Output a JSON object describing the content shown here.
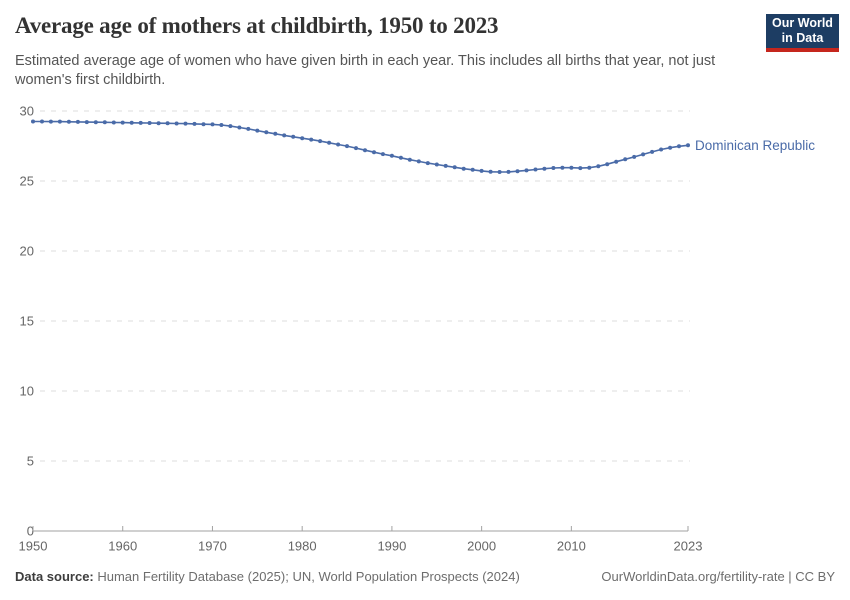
{
  "header": {
    "title": "Average age of mothers at childbirth, 1950 to 2023",
    "subtitle": "Estimated average age of women who have given birth in each year. This includes all births that year, not just women's first childbirth.",
    "logo": {
      "line1": "Our World",
      "line2": "in Data",
      "bg_color": "#1d3d63",
      "bar_color": "#c5261d",
      "text_color": "#ffffff"
    }
  },
  "chart_data": {
    "type": "line",
    "title": "Average age of mothers at childbirth, 1950 to 2023",
    "xlabel": "",
    "ylabel": "",
    "xlim": [
      1950,
      2023
    ],
    "ylim": [
      0,
      30
    ],
    "x_ticks": [
      1950,
      1960,
      1970,
      1980,
      1990,
      2000,
      2010,
      2023
    ],
    "y_ticks": [
      0,
      5,
      10,
      15,
      20,
      25,
      30
    ],
    "grid": "horizontal-dashed",
    "legend_position": "end-of-line-label",
    "series": [
      {
        "name": "Dominican Republic",
        "color": "#4a6ba8",
        "x_start": 1950,
        "x_step": 1,
        "values": [
          29.25,
          29.25,
          29.24,
          29.24,
          29.23,
          29.22,
          29.21,
          29.2,
          29.19,
          29.18,
          29.17,
          29.16,
          29.15,
          29.14,
          29.13,
          29.12,
          29.11,
          29.1,
          29.08,
          29.06,
          29.04,
          29.0,
          28.92,
          28.82,
          28.72,
          28.6,
          28.48,
          28.37,
          28.26,
          28.16,
          28.06,
          27.96,
          27.85,
          27.73,
          27.61,
          27.49,
          27.35,
          27.2,
          27.06,
          26.92,
          26.8,
          26.66,
          26.52,
          26.4,
          26.28,
          26.18,
          26.08,
          25.98,
          25.88,
          25.8,
          25.72,
          25.66,
          25.64,
          25.65,
          25.7,
          25.76,
          25.82,
          25.88,
          25.93,
          25.95,
          25.95,
          25.92,
          25.95,
          26.05,
          26.2,
          26.38,
          26.55,
          26.72,
          26.9,
          27.08,
          27.25,
          27.38,
          27.48,
          27.55
        ]
      }
    ]
  },
  "colors": {
    "line": "#4a6ba8",
    "entity_label": "#4a6ba8",
    "gridline": "#dcdcdc",
    "axis_line": "#a2a2a2",
    "tick_label": "#666666"
  },
  "footer": {
    "datasource_label": "Data source:",
    "datasource_text": " Human Fertility Database (2025); UN, World Population Prospects (2024)",
    "link_text": "OurWorldinData.org/fertility-rate | CC BY"
  }
}
